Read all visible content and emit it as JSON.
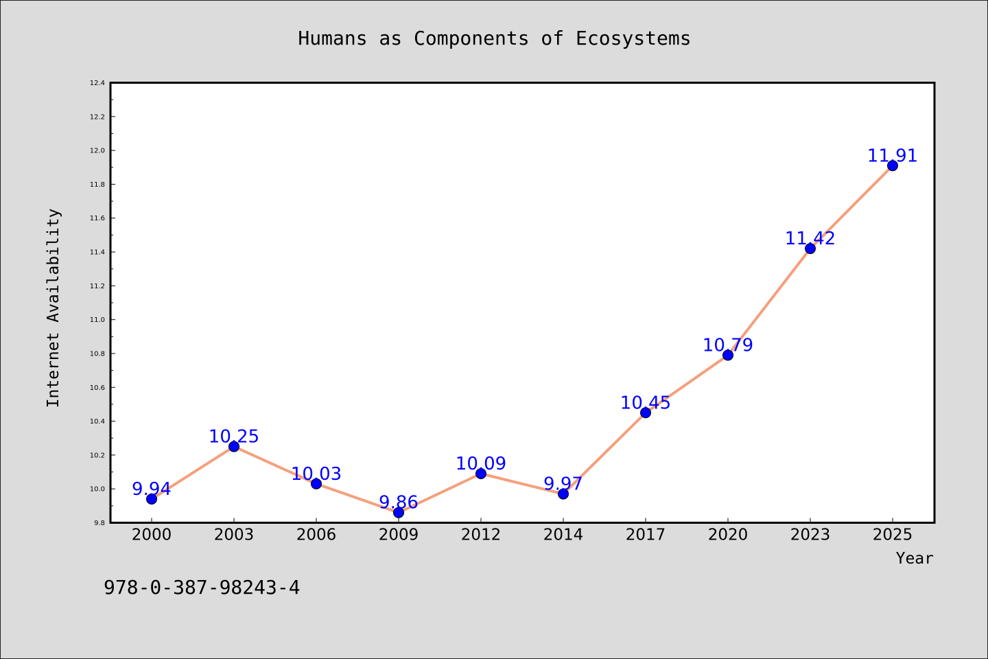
{
  "chart_data": {
    "type": "line",
    "title": "Humans as Components of Ecosystems",
    "xlabel": "Year",
    "ylabel": "Internet Availability",
    "categories": [
      "2000",
      "2003",
      "2006",
      "2009",
      "2012",
      "2014",
      "2017",
      "2020",
      "2023",
      "2025"
    ],
    "series": [
      {
        "values": [
          9.94,
          10.25,
          10.03,
          9.86,
          10.09,
          9.97,
          10.45,
          10.79,
          11.42,
          11.91
        ],
        "labels": [
          "9.94",
          "10.25",
          "10.03",
          "9.86",
          "10.09",
          "9.97",
          "10.45",
          "10.79",
          "11.42",
          "11.91"
        ],
        "line_color": "#f4a07c",
        "marker_color": "#0000ff",
        "label_color": "#0000ff"
      }
    ],
    "ylim": [
      9.8,
      12.4
    ],
    "yticks": [
      "9.8",
      "10.0",
      "10.2",
      "10.4",
      "10.6",
      "10.8",
      "11.0",
      "11.2",
      "11.4",
      "11.6",
      "11.8",
      "12.0",
      "12.2",
      "12.4"
    ],
    "grid": false,
    "legend": "none"
  },
  "footer_text": "978-0-387-98243-4",
  "colors": {
    "background": "#dcdcdc",
    "plot_background": "#ffffff"
  }
}
